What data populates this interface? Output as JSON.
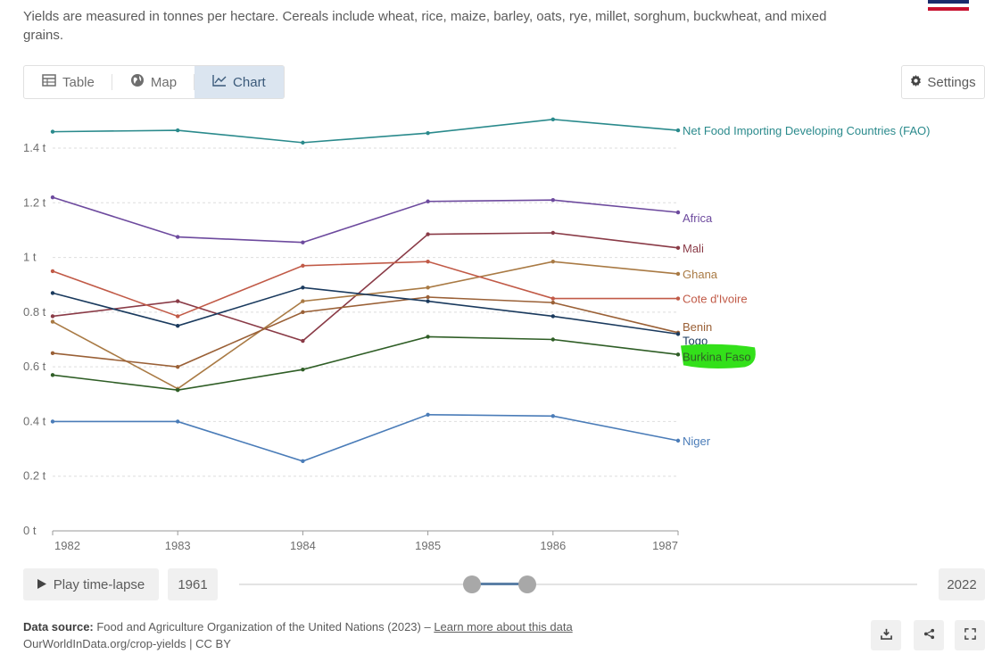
{
  "subtitle": "Yields are measured in tonnes per hectare. Cereals include wheat, rice, maize, barley, oats, rye, millet, sorghum, buckwheat, and mixed grains.",
  "tabs": [
    {
      "label": "Table",
      "icon": "table-icon"
    },
    {
      "label": "Map",
      "icon": "globe-icon"
    },
    {
      "label": "Chart",
      "icon": "line-chart-icon",
      "active": true
    }
  ],
  "settings_label": "Settings",
  "chart_data": {
    "type": "line",
    "x": [
      1982,
      1983,
      1984,
      1985,
      1986,
      1987
    ],
    "yticks": [
      "0 t",
      "0.2 t",
      "0.4 t",
      "0.6 t",
      "0.8 t",
      "1 t",
      "1.2 t",
      "1.4 t"
    ],
    "ytick_values": [
      0,
      0.2,
      0.4,
      0.6,
      0.8,
      1.0,
      1.2,
      1.4
    ],
    "ylim": [
      0,
      1.5
    ],
    "grid": true,
    "series": [
      {
        "name": "Net Food Importing Developing Countries (FAO)",
        "color": "#2a8a8c",
        "values": [
          1.46,
          1.465,
          1.42,
          1.455,
          1.505,
          1.465
        ]
      },
      {
        "name": "Africa",
        "color": "#6d4a9e",
        "values": [
          1.22,
          1.075,
          1.055,
          1.205,
          1.21,
          1.165
        ]
      },
      {
        "name": "Mali",
        "color": "#8a3b47",
        "values": [
          0.785,
          0.84,
          0.695,
          1.085,
          1.09,
          1.035
        ]
      },
      {
        "name": "Ghana",
        "color": "#a97a44",
        "values": [
          0.765,
          0.52,
          0.84,
          0.89,
          0.985,
          0.94
        ]
      },
      {
        "name": "Cote d'Ivoire",
        "color": "#c15a47",
        "values": [
          0.95,
          0.785,
          0.97,
          0.985,
          0.85,
          0.85
        ]
      },
      {
        "name": "Benin",
        "color": "#9a6036",
        "values": [
          0.65,
          0.6,
          0.8,
          0.855,
          0.835,
          0.725
        ]
      },
      {
        "name": "Togo",
        "color": "#1a3a5e",
        "values": [
          0.87,
          0.75,
          0.89,
          0.84,
          0.785,
          0.72
        ]
      },
      {
        "name": "Burkina Faso",
        "color": "#2f5e26",
        "values": [
          0.57,
          0.515,
          0.59,
          0.71,
          0.7,
          0.645
        ]
      },
      {
        "name": "Niger",
        "color": "#4a7cb8",
        "values": [
          0.4,
          0.4,
          0.255,
          0.425,
          0.42,
          0.33
        ]
      }
    ]
  },
  "controls": {
    "play_label": "Play time-lapse",
    "start_year": "1961",
    "end_year": "2022"
  },
  "footer": {
    "source_label": "Data source:",
    "source_text": " Food and Agriculture Organization of the United Nations (2023) – ",
    "learn_more": "Learn more about this data",
    "url_line": "OurWorldInData.org/crop-yields | CC BY"
  },
  "action_icons": [
    "download-icon",
    "share-icon",
    "fullscreen-icon"
  ]
}
